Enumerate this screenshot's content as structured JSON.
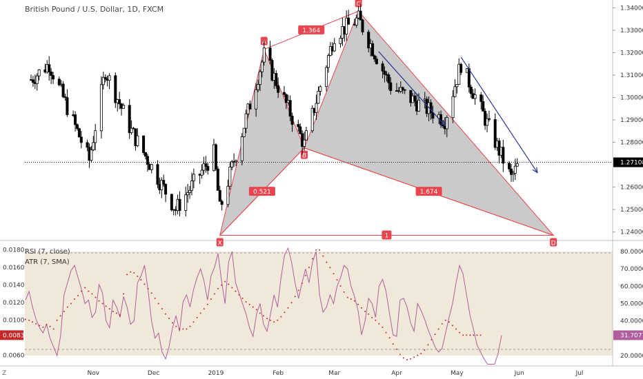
{
  "header": {
    "symbol_title": "British Pound / U.S. Dollar, 1D, FXCM"
  },
  "price_axis": {
    "ticks": [
      "1.34000",
      "1.33000",
      "1.32000",
      "1.31000",
      "1.30000",
      "1.29000",
      "1.28000",
      "1.27108",
      "1.26000",
      "1.25000",
      "1.24000"
    ],
    "current_price": "1.27108"
  },
  "indicators": {
    "rsi_label": "RSI (7, close)",
    "atr_label": "ATR (7, SMA)",
    "rsi_ticks": [
      "80.0000",
      "70.0000",
      "60.0000",
      "50.0000",
      "40.0000",
      "31.7077",
      "20.0000"
    ],
    "atr_ticks": [
      "0.0180",
      "0.0160",
      "0.0140",
      "0.0120",
      "0.0100",
      "0.0083",
      "0.0060"
    ],
    "rsi_current": "31.7077",
    "atr_current": "0.0083"
  },
  "time_axis": {
    "labels": [
      "Nov",
      "Dec",
      "2019",
      "Feb",
      "Mar",
      "Apr",
      "May",
      "Jun",
      "Jul"
    ]
  },
  "corner_label": "Z",
  "colors": {
    "up": "#ffffff",
    "down": "#000000",
    "pattern_line": "#e8454f",
    "pattern_fill": "#9e9e9e",
    "arrow": "#283593",
    "rsi_line": "#b05d9e",
    "atr_dots": "#c62828",
    "rsi_band": "#ede4d1",
    "current_price_bg": "#000000"
  },
  "chart_data": [
    {
      "type": "candlestick",
      "title": "British Pound / U.S. Dollar, 1D, FXCM",
      "x_range": [
        "2018-10-01",
        "2019-07-31"
      ],
      "ylim": [
        1.2365,
        1.3435
      ],
      "ohlc": [],
      "harmonic_pattern": {
        "points": [
          {
            "label": "X",
            "date": "2019-01-03",
            "price": 1.2385
          },
          {
            "label": "A",
            "date": "2019-01-25",
            "price": 1.3215
          },
          {
            "label": "B",
            "date": "2019-02-14",
            "price": 1.2775
          },
          {
            "label": "C",
            "date": "2019-03-13",
            "price": 1.3385
          },
          {
            "label": "D",
            "date": "2019-06-18",
            "price": 1.2385
          }
        ],
        "ratios": [
          {
            "value": "1.364",
            "between": [
              "A",
              "C"
            ]
          },
          {
            "value": "0.521",
            "between": [
              "X",
              "B"
            ]
          },
          {
            "value": "1.674",
            "between": [
              "B",
              "D"
            ]
          },
          {
            "value": "1",
            "between": [
              "X",
              "D"
            ]
          }
        ]
      },
      "arrows": [
        {
          "from": {
            "date": "2019-03-23",
            "price": 1.3205
          },
          "to": {
            "date": "2019-04-25",
            "price": 1.2875
          }
        },
        {
          "from": {
            "date": "2019-05-03",
            "price": 1.318
          },
          "to": {
            "date": "2019-06-10",
            "price": 1.2665
          }
        }
      ],
      "last_price": 1.27108
    },
    {
      "type": "line",
      "series": [
        {
          "name": "RSI (7, close)",
          "axis": "right",
          "ylim": [
            14,
            86
          ],
          "values": [
            52,
            57,
            48,
            41,
            36,
            33,
            38,
            30,
            25,
            20,
            31,
            55,
            62,
            69,
            72,
            65,
            58,
            50,
            52,
            42,
            45,
            61,
            56,
            40,
            36,
            52,
            48,
            42,
            54,
            48,
            38,
            40,
            62,
            66,
            72,
            58,
            40,
            30,
            33,
            22,
            18,
            25,
            36,
            43,
            34,
            51,
            55,
            48,
            58,
            65,
            70,
            63,
            52,
            66,
            71,
            79,
            63,
            50,
            74,
            80,
            62,
            56,
            50,
            44,
            36,
            31,
            44,
            50,
            38,
            34,
            44,
            55,
            48,
            65,
            78,
            82,
            74,
            62,
            53,
            62,
            70,
            62,
            74,
            80,
            55,
            45,
            48,
            55,
            50,
            60,
            65,
            72,
            70,
            60,
            54,
            46,
            32,
            40,
            53,
            50,
            42,
            60,
            64,
            57,
            44,
            32,
            31,
            52,
            53,
            48,
            39,
            34,
            50,
            46,
            41,
            35,
            30,
            25,
            22,
            24,
            33,
            42,
            50,
            62,
            72,
            67,
            55,
            43,
            35,
            26,
            22,
            18,
            15,
            15,
            15,
            21,
            31.7
          ]
        }
      ]
    },
    {
      "type": "scatter",
      "series": [
        {
          "name": "ATR (7, SMA)",
          "axis": "left",
          "ylim": [
            0.0048,
            0.019
          ],
          "values": [
            0.0101,
            0.01,
            0.0098,
            0.0096,
            0.0094,
            0.0092,
            0.0095,
            0.0093,
            0.009,
            0.01,
            0.0105,
            0.011,
            0.0115,
            0.0119,
            0.0124,
            0.0128,
            0.0133,
            0.0137,
            0.0133,
            0.013,
            0.0126,
            0.0122,
            0.0119,
            0.0116,
            0.0113,
            0.011,
            0.0108,
            0.0106,
            0.013,
            0.0152,
            0.0155,
            0.0154,
            0.015,
            0.0146,
            0.0141,
            0.0136,
            0.0131,
            0.0125,
            0.0119,
            0.0113,
            0.0107,
            0.0102,
            0.0097,
            0.0093,
            0.009,
            0.009,
            0.009,
            0.0093,
            0.0098,
            0.0103,
            0.0108,
            0.0113,
            0.0118,
            0.0124,
            0.013,
            0.0136,
            0.014,
            0.0144,
            0.0141,
            0.0137,
            0.0133,
            0.0129,
            0.0125,
            0.0121,
            0.0118,
            0.0115,
            0.0112,
            0.0108,
            0.0105,
            0.0102,
            0.01,
            0.0098,
            0.01,
            0.0104,
            0.0109,
            0.0114,
            0.012,
            0.0127,
            0.0134,
            0.0142,
            0.0151,
            0.016,
            0.017,
            0.018,
            0.018,
            0.0173,
            0.0166,
            0.016,
            0.0153,
            0.0146,
            0.0139,
            0.0132,
            0.0126,
            0.0124,
            0.0122,
            0.0118,
            0.0114,
            0.011,
            0.0107,
            0.0103,
            0.01,
            0.0096,
            0.0092,
            0.0086,
            0.008,
            0.0073,
            0.0067,
            0.0061,
            0.0057,
            0.0055,
            0.0056,
            0.0058,
            0.006,
            0.0062,
            0.0066,
            0.0072,
            0.0078,
            0.0084,
            0.009,
            0.0096,
            0.01,
            0.0098,
            0.0094,
            0.009,
            0.0086,
            0.0083,
            0.0083,
            0.0083,
            0.0083,
            0.0083,
            0.0083
          ]
        }
      ]
    }
  ]
}
